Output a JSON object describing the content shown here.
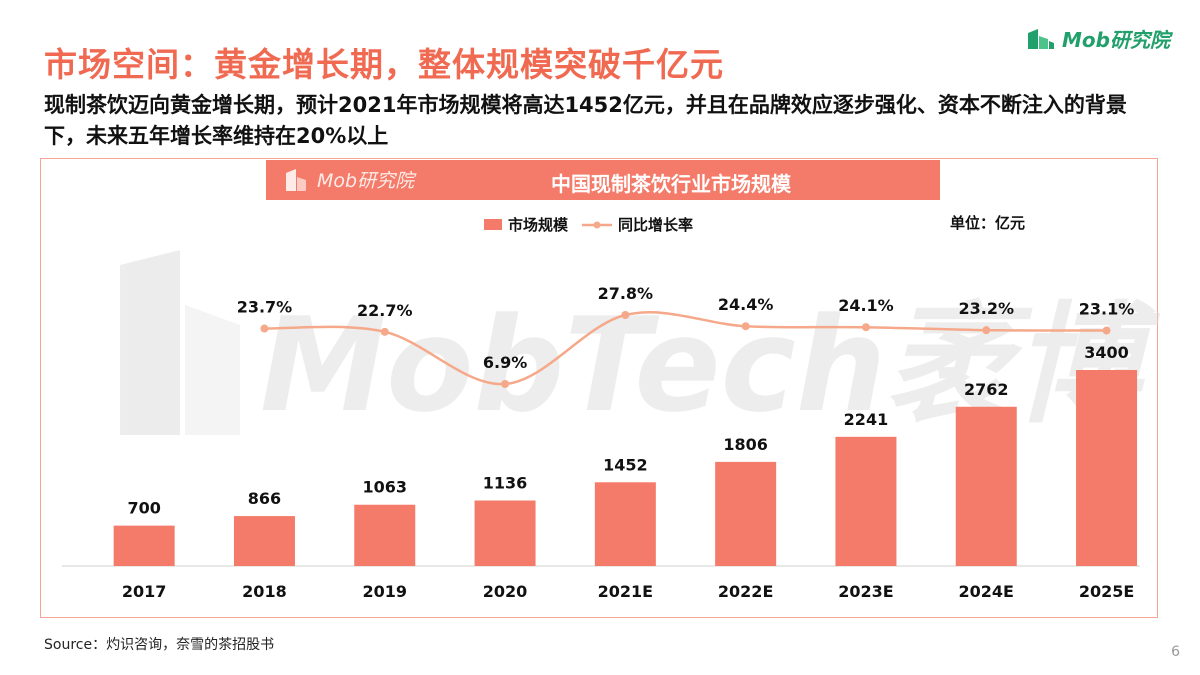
{
  "header": {
    "title": "市场空间：黄金增长期，整体规模突破千亿元",
    "subtitle": "现制茶饮迈向黄金增长期，预计2021年市场规模将高达1452亿元，并且在品牌效应逐步强化、资本不断注入的背景下，未来五年增长率维持在20%以上",
    "logo_text": "Mob研究院"
  },
  "chart_panel": {
    "banner_logo_text": "Mob研究院",
    "banner_title": "中国现制茶饮行业市场规模",
    "unit": "单位：亿元",
    "watermark_text": "MobTech袤博"
  },
  "colors": {
    "accent": "#f06a52",
    "bar": "#f47b69",
    "line": "#f5a98a",
    "logo_green": "#22a06b"
  },
  "chart_data": {
    "type": "bar",
    "categories": [
      "2017",
      "2018",
      "2019",
      "2020",
      "2021E",
      "2022E",
      "2023E",
      "2024E",
      "2025E"
    ],
    "series": [
      {
        "name": "市场规模",
        "type": "bar",
        "values": [
          700,
          866,
          1063,
          1136,
          1452,
          1806,
          2241,
          2762,
          3400
        ]
      },
      {
        "name": "同比增长率",
        "type": "line",
        "values": [
          null,
          23.7,
          22.7,
          6.9,
          27.8,
          24.4,
          24.1,
          23.2,
          23.1
        ],
        "labels": [
          "",
          "23.7%",
          "22.7%",
          "6.9%",
          "27.8%",
          "24.4%",
          "24.1%",
          "23.2%",
          "23.1%"
        ]
      }
    ],
    "bar_ylim": [
      0,
      3400
    ],
    "line_ylim": [
      0,
      30
    ],
    "legend_position": "top-center",
    "grid": false
  },
  "footer": {
    "source": "Source：灼识咨询，奈雪的茶招股书",
    "page_number": "6"
  }
}
